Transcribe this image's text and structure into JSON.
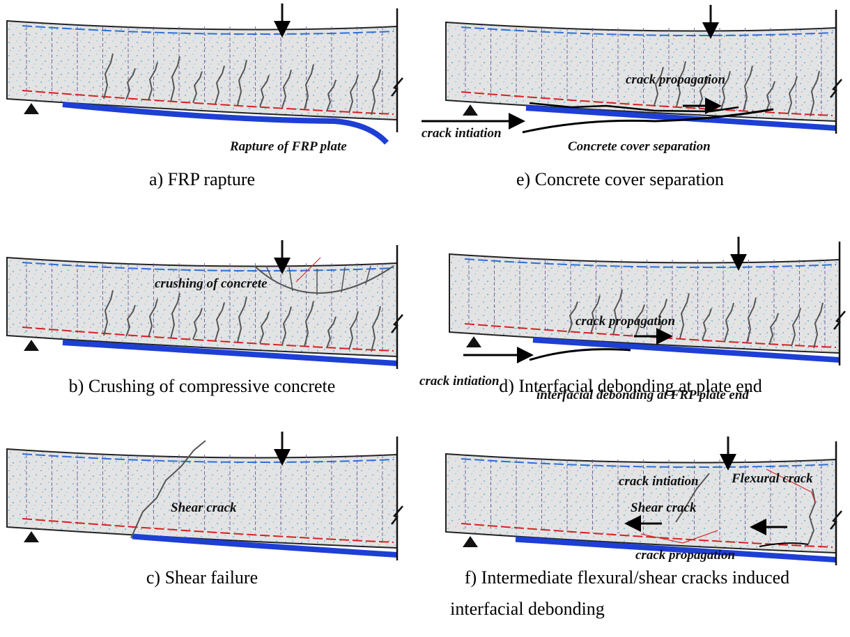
{
  "panels": [
    {
      "caption": "a) FRP rapture",
      "annotations": [
        "Rapture of FRP plate"
      ]
    },
    {
      "caption": "e) Concrete cover separation",
      "annotations": [
        "crack propagation",
        "crack intiation",
        "Concrete cover separation"
      ]
    },
    {
      "caption": "b) Crushing of compressive concrete",
      "annotations": [
        "crushing of concrete"
      ]
    },
    {
      "caption": "d) Interfacial debonding at plate end",
      "annotations": [
        "crack propagation",
        "crack intiation",
        "interfacial debonding at FRP plate end"
      ]
    },
    {
      "caption": "c) Shear failure",
      "annotations": [
        "Shear crack"
      ]
    },
    {
      "caption": [
        "f) Intermediate flexural/shear cracks  induced",
        "interfacial debonding"
      ],
      "annotations": [
        "crack intiation",
        "Flexural crack",
        "Shear crack",
        "crack propagation"
      ]
    }
  ]
}
